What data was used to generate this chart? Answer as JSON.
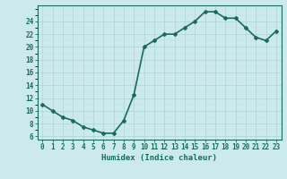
{
  "x": [
    0,
    1,
    2,
    3,
    4,
    5,
    6,
    7,
    8,
    9,
    10,
    11,
    12,
    13,
    14,
    15,
    16,
    17,
    18,
    19,
    20,
    21,
    22,
    23
  ],
  "y": [
    11,
    10,
    9,
    8.5,
    7.5,
    7,
    6.5,
    6.5,
    8.5,
    12.5,
    20,
    21,
    22,
    22,
    23,
    24,
    25.5,
    25.5,
    24.5,
    24.5,
    23,
    21.5,
    21,
    22.5
  ],
  "line_color": "#1a6b5a",
  "marker": "D",
  "marker_size": 2,
  "bg_color": "#cceaec",
  "grid_color_major": "#aad4d8",
  "grid_color_minor": "#bbdfe2",
  "xlabel": "Humidex (Indice chaleur)",
  "xlabel_fontsize": 6.5,
  "xtick_labels": [
    "0",
    "1",
    "2",
    "3",
    "4",
    "5",
    "6",
    "7",
    "8",
    "9",
    "10",
    "11",
    "12",
    "13",
    "14",
    "15",
    "16",
    "17",
    "18",
    "19",
    "20",
    "21",
    "22",
    "23"
  ],
  "ytick_values": [
    6,
    8,
    10,
    12,
    14,
    16,
    18,
    20,
    22,
    24
  ],
  "ylim": [
    5.5,
    26.5
  ],
  "xlim": [
    -0.5,
    23.5
  ],
  "tick_fontsize": 5.5,
  "axis_color": "#1a6b5a",
  "linewidth": 1.2
}
